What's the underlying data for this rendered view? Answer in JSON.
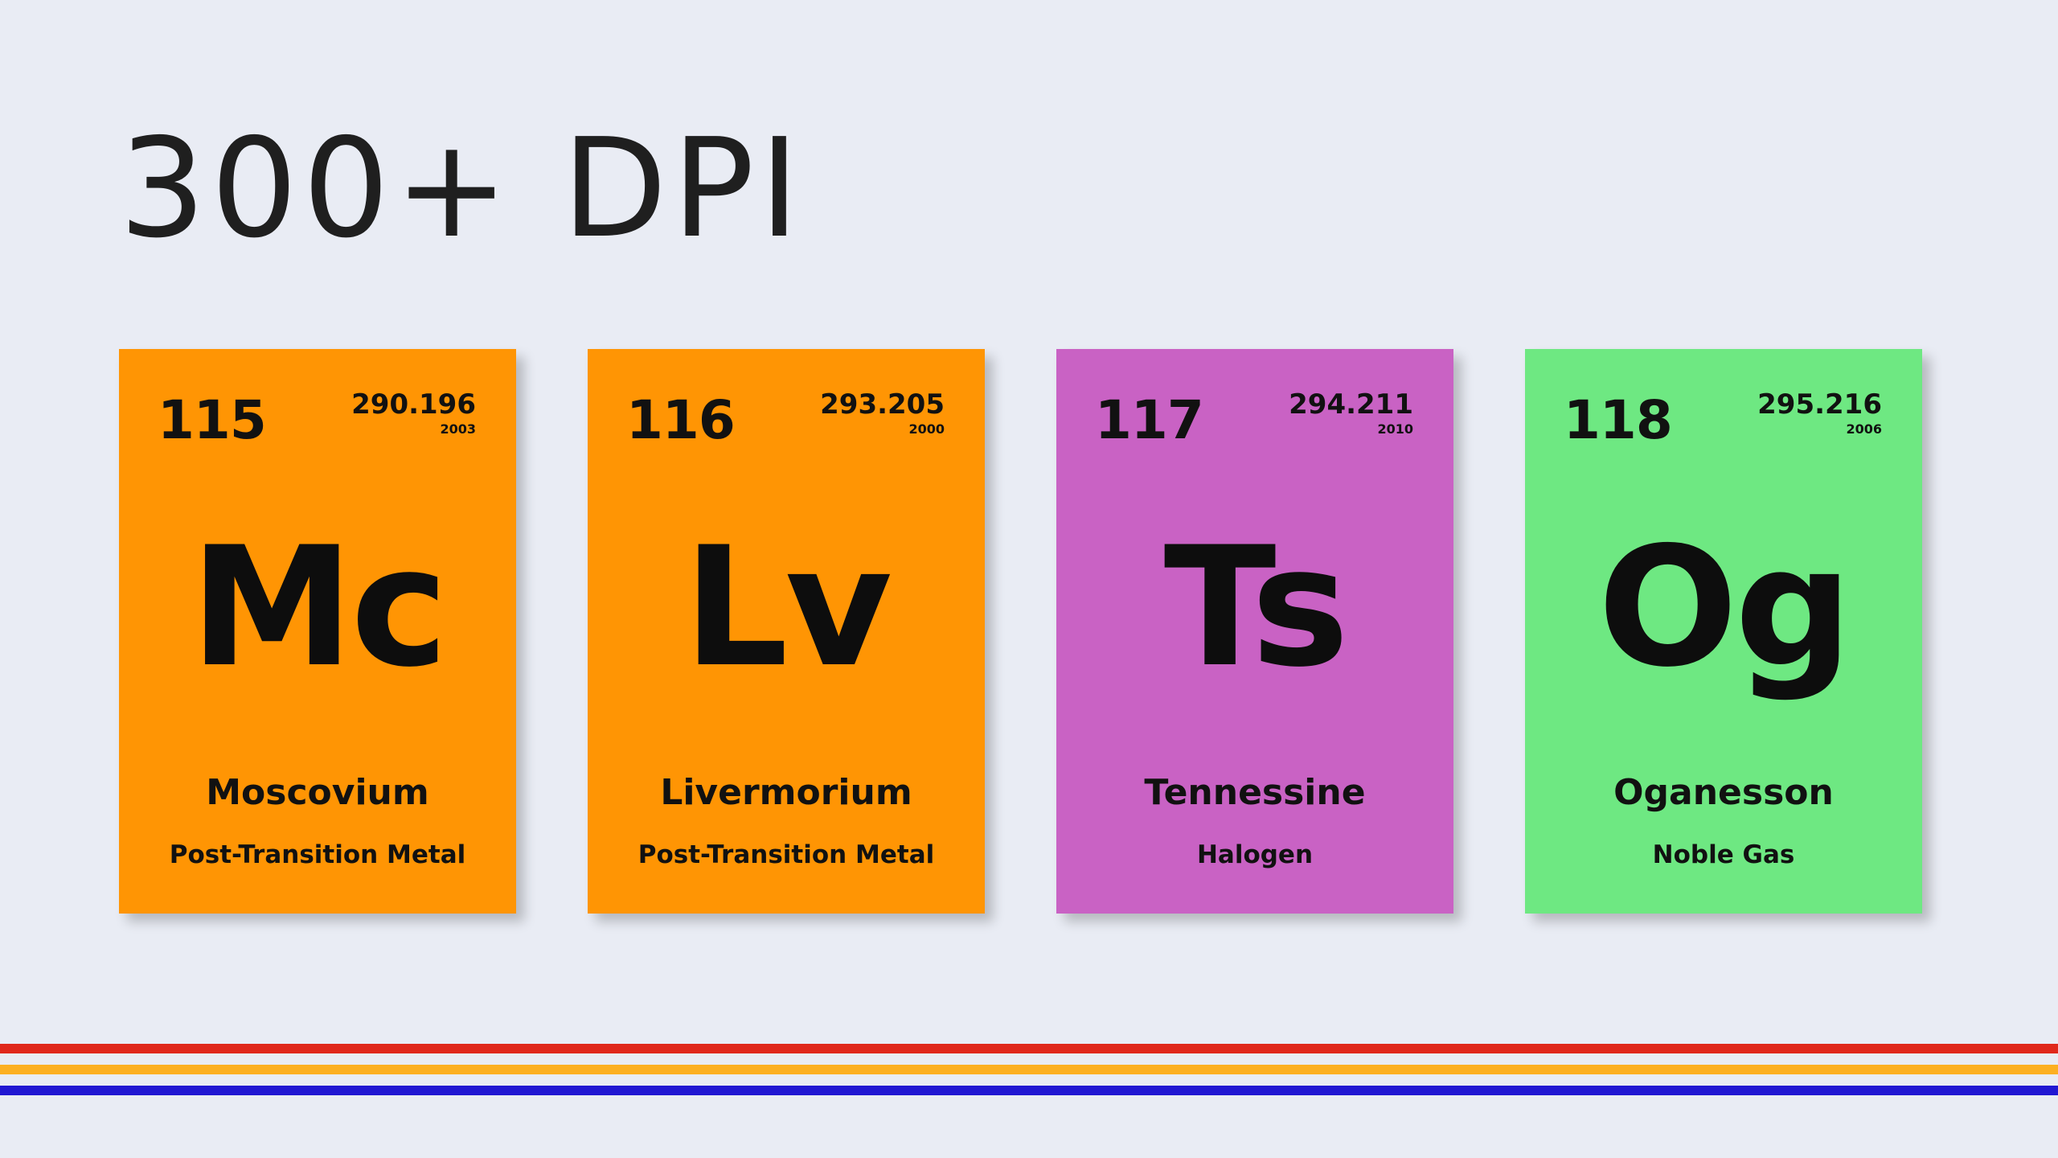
{
  "title": "300+ DPI",
  "elements": [
    {
      "number": "115",
      "mass": "290.196",
      "year": "2003",
      "symbol": "Mc",
      "name": "Moscovium",
      "category": "Post-Transition Metal",
      "color": "#ff9504"
    },
    {
      "number": "116",
      "mass": "293.205",
      "year": "2000",
      "symbol": "Lv",
      "name": "Livermorium",
      "category": "Post-Transition Metal",
      "color": "#ff9504"
    },
    {
      "number": "117",
      "mass": "294.211",
      "year": "2010",
      "symbol": "Ts",
      "name": "Tennessine",
      "category": "Halogen",
      "color": "#c962c4"
    },
    {
      "number": "118",
      "mass": "295.216",
      "year": "2006",
      "symbol": "Og",
      "name": "Oganesson",
      "category": "Noble Gas",
      "color": "#6ee882"
    }
  ],
  "stripes": {
    "red": "#e0281b",
    "orange": "#fcb022",
    "blue": "#2117d2"
  },
  "background": "#e9ecf4"
}
